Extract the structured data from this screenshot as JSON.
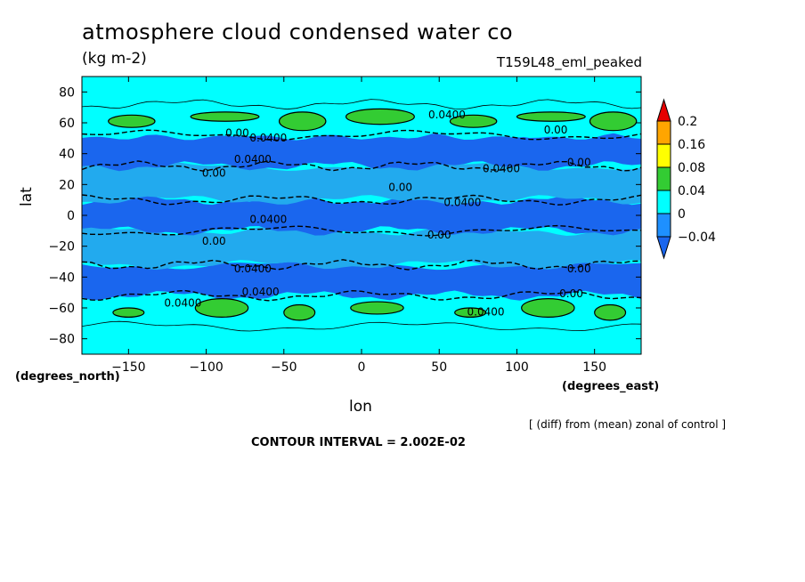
{
  "chart_data": {
    "type": "heatmap",
    "title": "atmosphere cloud condensed water co",
    "units": "(kg m-2)",
    "experiment": "T159L48_eml_peaked",
    "xlabel": "lon",
    "ylabel": "lat",
    "x_units": "(degrees_east)",
    "y_units": "(degrees_north)",
    "xlim": [
      -180,
      180
    ],
    "ylim": [
      -90,
      90
    ],
    "x_ticks": [
      -150,
      -100,
      -50,
      0,
      50,
      100,
      150
    ],
    "y_ticks": [
      80,
      60,
      40,
      20,
      0,
      -20,
      -40,
      -60,
      -80
    ],
    "contour_interval_text": "CONTOUR INTERVAL = 2.002E-02",
    "note": "[ (diff) from (mean) zonal of control ]",
    "colorbar": {
      "levels": [
        "0.2",
        "0.16",
        "0.08",
        "0.04",
        "0",
        "-0.04"
      ],
      "colors": [
        "#e60000",
        "#ffa500",
        "#ffff00",
        "#33cc33",
        "#00ffff",
        "#1e90ff",
        "#1a66ee"
      ]
    },
    "bands": [
      {
        "lat": [
          -90,
          -72
        ],
        "class": "0 to 0.04"
      },
      {
        "lat": [
          -72,
          -52
        ],
        "class": "0 to 0.04",
        "patches": "0.04 to 0.08"
      },
      {
        "lat": [
          -52,
          -32
        ],
        "class": "below -0.04"
      },
      {
        "lat": [
          -32,
          -10
        ],
        "class": "-0.04 to 0"
      },
      {
        "lat": [
          -10,
          10
        ],
        "class": "below -0.04"
      },
      {
        "lat": [
          10,
          32
        ],
        "class": "-0.04 to 0"
      },
      {
        "lat": [
          32,
          52
        ],
        "class": "below -0.04"
      },
      {
        "lat": [
          52,
          72
        ],
        "class": "0 to 0.04",
        "patches": "0.04 to 0.08"
      },
      {
        "lat": [
          72,
          90
        ],
        "class": "0 to 0.04"
      }
    ],
    "contour_labels": [
      {
        "lon": -80,
        "lat": 51,
        "text": "0.00"
      },
      {
        "lon": -60,
        "lat": 48,
        "text": "0.0400"
      },
      {
        "lon": 55,
        "lat": 63,
        "text": "0.0400"
      },
      {
        "lon": 125,
        "lat": 53,
        "text": "0.00"
      },
      {
        "lon": -70,
        "lat": 34,
        "text": "0.0400"
      },
      {
        "lon": -95,
        "lat": 25,
        "text": "0.00"
      },
      {
        "lon": 90,
        "lat": 28,
        "text": "0.0400"
      },
      {
        "lon": 140,
        "lat": 32,
        "text": "0.00"
      },
      {
        "lon": 25,
        "lat": 16,
        "text": "0.00"
      },
      {
        "lon": 65,
        "lat": 6,
        "text": "0.0400"
      },
      {
        "lon": -60,
        "lat": -5,
        "text": "0.0400"
      },
      {
        "lon": 50,
        "lat": -15,
        "text": "0.00"
      },
      {
        "lon": -95,
        "lat": -19,
        "text": "0.00"
      },
      {
        "lon": -70,
        "lat": -37,
        "text": "0.0400"
      },
      {
        "lon": 140,
        "lat": -37,
        "text": "0.00"
      },
      {
        "lon": -65,
        "lat": -52,
        "text": "0.0400"
      },
      {
        "lon": -115,
        "lat": -59,
        "text": "0.0400"
      },
      {
        "lon": 80,
        "lat": -65,
        "text": "0.0400"
      },
      {
        "lon": 135,
        "lat": -53,
        "text": "0.00"
      }
    ]
  }
}
